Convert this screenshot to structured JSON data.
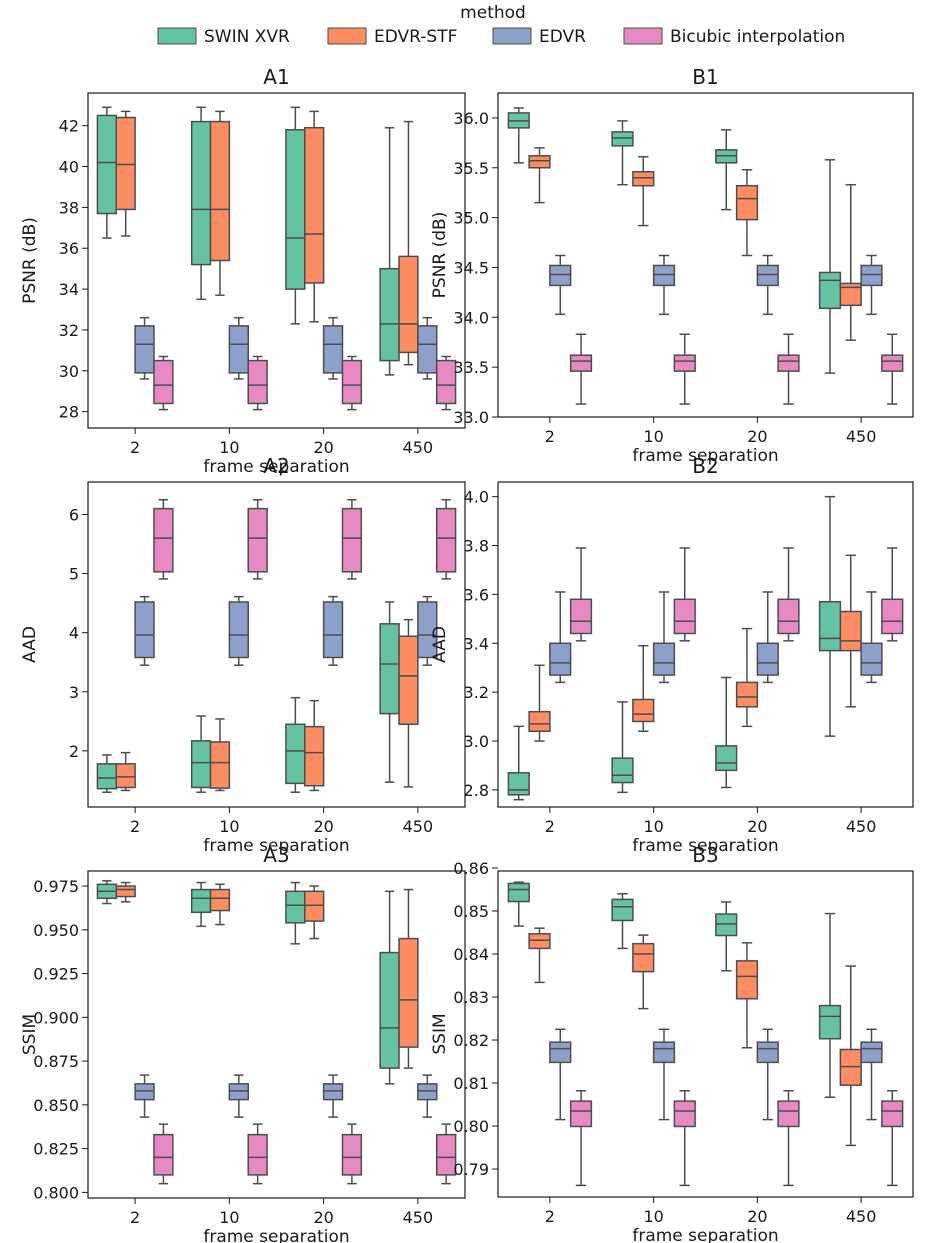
{
  "legend": {
    "title": "method",
    "placement": "top-center",
    "entries": [
      {
        "name": "SWIN XVR",
        "color": "#66c2a5"
      },
      {
        "name": "EDVR-STF",
        "color": "#fc8d62"
      },
      {
        "name": "EDVR",
        "color": "#8da0cb"
      },
      {
        "name": "Bicubic interpolation",
        "color": "#e78ac3"
      }
    ]
  },
  "chart_data": [
    {
      "id": "A1",
      "type": "box",
      "title": "A1",
      "xlabel": "frame separation",
      "ylabel": "PSNR (dB)",
      "categories": [
        "2",
        "10",
        "20",
        "450"
      ],
      "ylim": [
        27.2,
        43.6
      ],
      "yticks": [
        {
          "v": 28,
          "label": "28"
        },
        {
          "v": 30,
          "label": "30"
        },
        {
          "v": 32,
          "label": "32"
        },
        {
          "v": 34,
          "label": "34"
        },
        {
          "v": 36,
          "label": "36"
        },
        {
          "v": 38,
          "label": "38"
        },
        {
          "v": 40,
          "label": "40"
        },
        {
          "v": 42,
          "label": "42"
        }
      ],
      "series": [
        {
          "name": "SWIN XVR",
          "boxes": [
            [
              36.5,
              37.7,
              40.2,
              42.5,
              42.9
            ],
            [
              33.5,
              35.2,
              37.9,
              42.2,
              42.9
            ],
            [
              32.3,
              34.0,
              36.5,
              41.8,
              42.9
            ],
            [
              29.8,
              30.5,
              32.3,
              35.0,
              41.9
            ]
          ]
        },
        {
          "name": "EDVR-STF",
          "boxes": [
            [
              36.6,
              37.9,
              40.1,
              42.4,
              42.7
            ],
            [
              33.7,
              35.4,
              37.9,
              42.2,
              42.7
            ],
            [
              32.4,
              34.3,
              36.7,
              41.9,
              42.7
            ],
            [
              30.3,
              30.9,
              32.3,
              35.6,
              42.2
            ]
          ]
        },
        {
          "name": "EDVR",
          "boxes": [
            [
              29.6,
              29.9,
              31.3,
              32.2,
              32.6
            ],
            [
              29.6,
              29.9,
              31.3,
              32.2,
              32.6
            ],
            [
              29.6,
              29.9,
              31.3,
              32.2,
              32.6
            ],
            [
              29.6,
              29.9,
              31.3,
              32.2,
              32.6
            ]
          ]
        },
        {
          "name": "Bicubic interpolation",
          "boxes": [
            [
              28.1,
              28.4,
              29.3,
              30.5,
              30.7
            ],
            [
              28.1,
              28.4,
              29.3,
              30.5,
              30.7
            ],
            [
              28.1,
              28.4,
              29.3,
              30.5,
              30.7
            ],
            [
              28.1,
              28.4,
              29.3,
              30.5,
              30.7
            ]
          ]
        }
      ]
    },
    {
      "id": "B1",
      "type": "box",
      "title": "B1",
      "xlabel": "frame separation",
      "ylabel": "PSNR (dB)",
      "categories": [
        "2",
        "10",
        "20",
        "450"
      ],
      "ylim": [
        33.0,
        36.25
      ],
      "yticks": [
        {
          "v": 33.0,
          "label": "33.0"
        },
        {
          "v": 33.5,
          "label": "33.5"
        },
        {
          "v": 34.0,
          "label": "34.0"
        },
        {
          "v": 34.5,
          "label": "34.5"
        },
        {
          "v": 35.0,
          "label": "35.0"
        },
        {
          "v": 35.5,
          "label": "35.5"
        },
        {
          "v": 36.0,
          "label": "36.0"
        }
      ],
      "series": [
        {
          "name": "SWIN XVR",
          "boxes": [
            [
              35.55,
              35.9,
              35.97,
              36.05,
              36.1
            ],
            [
              35.33,
              35.72,
              35.8,
              35.86,
              35.97
            ],
            [
              35.08,
              35.55,
              35.62,
              35.68,
              35.88
            ],
            [
              33.44,
              34.09,
              34.37,
              34.45,
              35.58
            ]
          ]
        },
        {
          "name": "EDVR-STF",
          "boxes": [
            [
              35.15,
              35.5,
              35.57,
              35.62,
              35.7
            ],
            [
              34.92,
              35.32,
              35.4,
              35.46,
              35.61
            ],
            [
              34.62,
              34.98,
              35.19,
              35.32,
              35.48
            ],
            [
              33.77,
              34.12,
              34.3,
              34.34,
              35.33
            ]
          ]
        },
        {
          "name": "EDVR",
          "boxes": [
            [
              34.03,
              34.32,
              34.43,
              34.52,
              34.62
            ],
            [
              34.03,
              34.32,
              34.43,
              34.52,
              34.62
            ],
            [
              34.03,
              34.32,
              34.43,
              34.52,
              34.62
            ],
            [
              34.03,
              34.32,
              34.43,
              34.52,
              34.62
            ]
          ]
        },
        {
          "name": "Bicubic interpolation",
          "boxes": [
            [
              33.13,
              33.46,
              33.56,
              33.62,
              33.83
            ],
            [
              33.13,
              33.46,
              33.56,
              33.62,
              33.83
            ],
            [
              33.13,
              33.46,
              33.56,
              33.62,
              33.83
            ],
            [
              33.13,
              33.46,
              33.56,
              33.62,
              33.83
            ]
          ]
        }
      ]
    },
    {
      "id": "A2",
      "type": "box",
      "title": "A2",
      "xlabel": "frame separation",
      "ylabel": "AAD",
      "categories": [
        "2",
        "10",
        "20",
        "450"
      ],
      "ylim": [
        1.05,
        6.55
      ],
      "yticks": [
        {
          "v": 2,
          "label": "2"
        },
        {
          "v": 3,
          "label": "3"
        },
        {
          "v": 4,
          "label": "4"
        },
        {
          "v": 5,
          "label": "5"
        },
        {
          "v": 6,
          "label": "6"
        }
      ],
      "series": [
        {
          "name": "SWIN XVR",
          "boxes": [
            [
              1.3,
              1.36,
              1.54,
              1.78,
              1.93
            ],
            [
              1.3,
              1.38,
              1.8,
              2.17,
              2.59
            ],
            [
              1.3,
              1.45,
              2.0,
              2.45,
              2.9
            ],
            [
              1.47,
              2.63,
              3.47,
              4.15,
              4.52
            ]
          ]
        },
        {
          "name": "EDVR-STF",
          "boxes": [
            [
              1.33,
              1.38,
              1.56,
              1.78,
              1.97
            ],
            [
              1.33,
              1.37,
              1.8,
              2.15,
              2.54
            ],
            [
              1.33,
              1.41,
              1.97,
              2.41,
              2.85
            ],
            [
              1.39,
              2.45,
              3.27,
              3.94,
              4.22
            ]
          ]
        },
        {
          "name": "EDVR",
          "boxes": [
            [
              3.45,
              3.58,
              3.96,
              4.52,
              4.61
            ],
            [
              3.45,
              3.58,
              3.96,
              4.52,
              4.61
            ],
            [
              3.45,
              3.58,
              3.96,
              4.52,
              4.61
            ],
            [
              3.45,
              3.58,
              3.96,
              4.52,
              4.61
            ]
          ]
        },
        {
          "name": "Bicubic interpolation",
          "boxes": [
            [
              4.91,
              5.03,
              5.6,
              6.1,
              6.25
            ],
            [
              4.91,
              5.03,
              5.6,
              6.1,
              6.25
            ],
            [
              4.91,
              5.03,
              5.6,
              6.1,
              6.25
            ],
            [
              4.91,
              5.03,
              5.6,
              6.1,
              6.25
            ]
          ]
        }
      ]
    },
    {
      "id": "B2",
      "type": "box",
      "title": "B2",
      "xlabel": "frame separation",
      "ylabel": "AAD",
      "categories": [
        "2",
        "10",
        "20",
        "450"
      ],
      "ylim": [
        2.73,
        4.06
      ],
      "yticks": [
        {
          "v": 2.8,
          "label": "2.8"
        },
        {
          "v": 3.0,
          "label": "3.0"
        },
        {
          "v": 3.2,
          "label": "3.2"
        },
        {
          "v": 3.4,
          "label": "3.4"
        },
        {
          "v": 3.6,
          "label": "3.6"
        },
        {
          "v": 3.8,
          "label": "3.8"
        },
        {
          "v": 4.0,
          "label": "4.0"
        }
      ],
      "series": [
        {
          "name": "SWIN XVR",
          "boxes": [
            [
              2.76,
              2.78,
              2.8,
              2.87,
              3.06
            ],
            [
              2.79,
              2.83,
              2.86,
              2.93,
              3.16
            ],
            [
              2.81,
              2.88,
              2.91,
              2.98,
              3.26
            ],
            [
              3.02,
              3.37,
              3.42,
              3.57,
              4.0
            ]
          ]
        },
        {
          "name": "EDVR-STF",
          "boxes": [
            [
              3.0,
              3.04,
              3.07,
              3.12,
              3.31
            ],
            [
              3.04,
              3.08,
              3.11,
              3.17,
              3.39
            ],
            [
              3.06,
              3.14,
              3.18,
              3.24,
              3.46
            ],
            [
              3.14,
              3.37,
              3.41,
              3.53,
              3.76
            ]
          ]
        },
        {
          "name": "EDVR",
          "boxes": [
            [
              3.24,
              3.27,
              3.32,
              3.4,
              3.61
            ],
            [
              3.24,
              3.27,
              3.32,
              3.4,
              3.61
            ],
            [
              3.24,
              3.27,
              3.32,
              3.4,
              3.61
            ],
            [
              3.24,
              3.27,
              3.32,
              3.4,
              3.61
            ]
          ]
        },
        {
          "name": "Bicubic interpolation",
          "boxes": [
            [
              3.41,
              3.44,
              3.49,
              3.58,
              3.79
            ],
            [
              3.41,
              3.44,
              3.49,
              3.58,
              3.79
            ],
            [
              3.41,
              3.44,
              3.49,
              3.58,
              3.79
            ],
            [
              3.41,
              3.44,
              3.49,
              3.58,
              3.79
            ]
          ]
        }
      ]
    },
    {
      "id": "A3",
      "type": "box",
      "title": "A3",
      "xlabel": "frame separation",
      "ylabel": "SSIM",
      "categories": [
        "2",
        "10",
        "20",
        "450"
      ],
      "ylim": [
        0.7968,
        0.9836
      ],
      "yticks": [
        {
          "v": 0.8,
          "label": "0.800"
        },
        {
          "v": 0.825,
          "label": "0.825"
        },
        {
          "v": 0.85,
          "label": "0.850"
        },
        {
          "v": 0.875,
          "label": "0.875"
        },
        {
          "v": 0.9,
          "label": "0.900"
        },
        {
          "v": 0.925,
          "label": "0.925"
        },
        {
          "v": 0.95,
          "label": "0.950"
        },
        {
          "v": 0.975,
          "label": "0.975"
        }
      ],
      "series": [
        {
          "name": "SWIN XVR",
          "boxes": [
            [
              0.965,
              0.968,
              0.972,
              0.976,
              0.978
            ],
            [
              0.952,
              0.96,
              0.968,
              0.973,
              0.977
            ],
            [
              0.942,
              0.954,
              0.964,
              0.972,
              0.977
            ],
            [
              0.862,
              0.871,
              0.894,
              0.937,
              0.972
            ]
          ]
        },
        {
          "name": "EDVR-STF",
          "boxes": [
            [
              0.966,
              0.969,
              0.973,
              0.975,
              0.977
            ],
            [
              0.953,
              0.961,
              0.968,
              0.973,
              0.976
            ],
            [
              0.945,
              0.955,
              0.964,
              0.972,
              0.975
            ],
            [
              0.871,
              0.883,
              0.91,
              0.945,
              0.973
            ]
          ]
        },
        {
          "name": "EDVR",
          "boxes": [
            [
              0.843,
              0.853,
              0.858,
              0.862,
              0.867
            ],
            [
              0.843,
              0.853,
              0.858,
              0.862,
              0.867
            ],
            [
              0.843,
              0.853,
              0.858,
              0.862,
              0.867
            ],
            [
              0.843,
              0.853,
              0.858,
              0.862,
              0.867
            ]
          ]
        },
        {
          "name": "Bicubic interpolation",
          "boxes": [
            [
              0.805,
              0.81,
              0.82,
              0.833,
              0.839
            ],
            [
              0.805,
              0.81,
              0.82,
              0.833,
              0.839
            ],
            [
              0.805,
              0.81,
              0.82,
              0.833,
              0.839
            ],
            [
              0.805,
              0.81,
              0.82,
              0.833,
              0.839
            ]
          ]
        }
      ]
    },
    {
      "id": "B3",
      "type": "box",
      "title": "B3",
      "xlabel": "frame separation",
      "ylabel": "SSIM",
      "categories": [
        "2",
        "10",
        "20",
        "450"
      ],
      "ylim": [
        0.7835,
        0.8593
      ],
      "yticks": [
        {
          "v": 0.79,
          "label": "0.79"
        },
        {
          "v": 0.8,
          "label": "0.80"
        },
        {
          "v": 0.81,
          "label": "0.81"
        },
        {
          "v": 0.82,
          "label": "0.82"
        },
        {
          "v": 0.83,
          "label": "0.83"
        },
        {
          "v": 0.84,
          "label": "0.84"
        },
        {
          "v": 0.85,
          "label": "0.85"
        },
        {
          "v": 0.86,
          "label": "0.86"
        }
      ],
      "series": [
        {
          "name": "SWIN XVR",
          "boxes": [
            [
              0.8465,
              0.8522,
              0.855,
              0.8564,
              0.8567
            ],
            [
              0.8413,
              0.8478,
              0.851,
              0.8527,
              0.854
            ],
            [
              0.8361,
              0.8443,
              0.847,
              0.8493,
              0.8521
            ],
            [
              0.8067,
              0.8203,
              0.8255,
              0.828,
              0.8494
            ]
          ]
        },
        {
          "name": "EDVR-STF",
          "boxes": [
            [
              0.8334,
              0.8413,
              0.8432,
              0.8447,
              0.846
            ],
            [
              0.8273,
              0.8359,
              0.84,
              0.8424,
              0.8444
            ],
            [
              0.8182,
              0.8296,
              0.8348,
              0.8384,
              0.8426
            ],
            [
              0.7955,
              0.8095,
              0.8138,
              0.8178,
              0.8372
            ]
          ]
        },
        {
          "name": "EDVR",
          "boxes": [
            [
              0.8015,
              0.8148,
              0.818,
              0.8195,
              0.8225
            ],
            [
              0.8015,
              0.8148,
              0.818,
              0.8195,
              0.8225
            ],
            [
              0.8015,
              0.8148,
              0.818,
              0.8195,
              0.8225
            ],
            [
              0.8015,
              0.8148,
              0.818,
              0.8195,
              0.8225
            ]
          ]
        },
        {
          "name": "Bicubic interpolation",
          "boxes": [
            [
              0.7862,
              0.7999,
              0.8035,
              0.8058,
              0.8082
            ],
            [
              0.7862,
              0.7999,
              0.8035,
              0.8058,
              0.8082
            ],
            [
              0.7862,
              0.7999,
              0.8035,
              0.8058,
              0.8082
            ],
            [
              0.7862,
              0.7999,
              0.8035,
              0.8058,
              0.8082
            ]
          ]
        }
      ]
    }
  ]
}
